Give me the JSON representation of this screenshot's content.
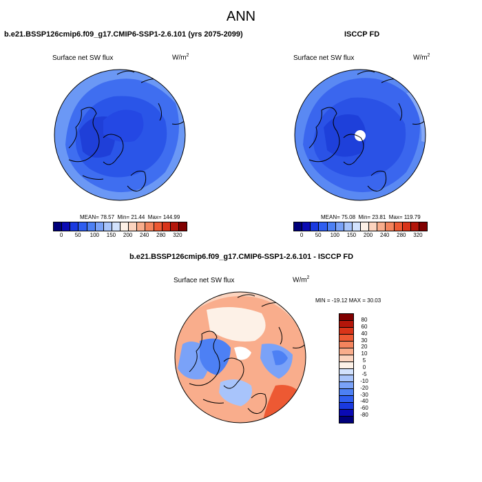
{
  "suptitle": "ANN",
  "panel_a": {
    "title": "b.e21.BSSP126cmip6.f09_g17.CMIP6-SSP1-2.6.101 (yrs 2075-2099)",
    "variable": "Surface net SW flux",
    "units": "W/m",
    "units_exp": "2",
    "stats": {
      "mean_label": "MEAN=",
      "mean": "78.57",
      "min_label": "Min=",
      "min": "21.44",
      "max_label": "Max=",
      "max": "144.99"
    }
  },
  "panel_b": {
    "title": "ISCCP FD",
    "variable": "Surface net SW flux",
    "units": "W/m",
    "units_exp": "2",
    "stats": {
      "mean_label": "MEAN=",
      "mean": "75.08",
      "min_label": "Min=",
      "min": "23.81",
      "max_label": "Max=",
      "max": "119.79"
    }
  },
  "panel_c": {
    "title": "b.e21.BSSP126cmip6.f09_g17.CMIP6-SSP1-2.6.101 - ISCCP FD",
    "variable": "Surface net SW flux",
    "units": "W/m",
    "units_exp": "2",
    "minmax": "MIN = -19.12 MAX =  30.03"
  },
  "colorbar_abs": {
    "ticks": [
      "0",
      "50",
      "100",
      "150",
      "200",
      "240",
      "280",
      "320"
    ],
    "colors": [
      "#00007a",
      "#0a0ab4",
      "#1a3ae0",
      "#2f5ef0",
      "#4d80f4",
      "#7aa2f8",
      "#a8c4fb",
      "#d2e2fd",
      "#fdf1e7",
      "#fcd4bf",
      "#f9ad8c",
      "#f4845d",
      "#ed5933",
      "#d93419",
      "#b3160a",
      "#800000"
    ]
  },
  "colorbar_diff": {
    "ticks": [
      "80",
      "60",
      "40",
      "30",
      "20",
      "10",
      "5",
      "0",
      "-5",
      "-10",
      "-20",
      "-30",
      "-40",
      "-60",
      "-80"
    ],
    "colors": [
      "#800000",
      "#b3160a",
      "#d93419",
      "#ed5933",
      "#f4845d",
      "#f9ad8c",
      "#fcd4bf",
      "#fdf1e7",
      "#d2e2fd",
      "#a8c4fb",
      "#7aa2f8",
      "#4d80f4",
      "#2f5ef0",
      "#1a3ae0",
      "#0a0ab4",
      "#00007a"
    ]
  },
  "colors": {
    "accent": "#1a3ae0",
    "warm": "#f4845d"
  }
}
